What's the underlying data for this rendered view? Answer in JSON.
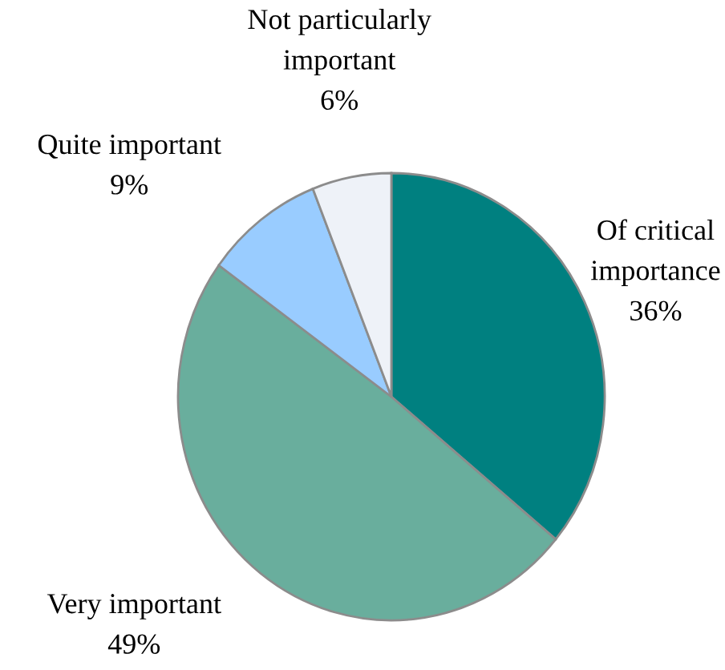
{
  "chart_data": {
    "type": "pie",
    "categories": [
      "Of critical importance",
      "Very important",
      "Quite important",
      "Not particularly important"
    ],
    "values": [
      36,
      49,
      9,
      6
    ],
    "colors": [
      "#008080",
      "#69ae9d",
      "#99ccff",
      "#eef2f8"
    ],
    "value_labels": [
      "36%",
      "49%",
      "9%",
      "6%"
    ]
  }
}
